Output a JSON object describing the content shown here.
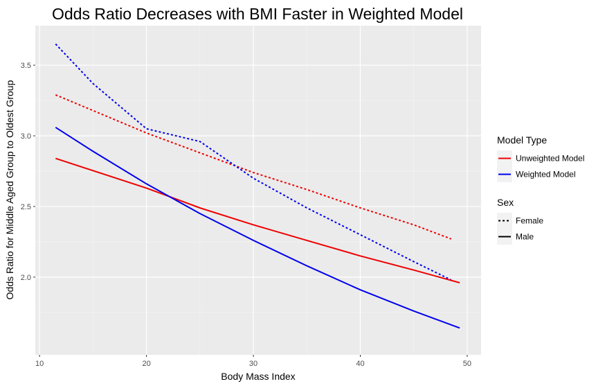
{
  "chart_data": {
    "type": "line",
    "title": "Odds Ratio Decreases with BMI Faster in Weighted Model",
    "xlabel": "Body Mass Index",
    "ylabel": "Odds Ratio for Middle Aged Group to Oldest Group",
    "xlim": [
      9.6,
      51.3
    ],
    "ylim": [
      1.45,
      3.78
    ],
    "x_ticks": [
      10,
      20,
      30,
      40,
      50
    ],
    "y_ticks": [
      2.0,
      2.5,
      3.0,
      3.5
    ],
    "x_tick_labels": [
      "10",
      "20",
      "30",
      "40",
      "50"
    ],
    "y_tick_labels": [
      "2.0",
      "2.5",
      "3.0",
      "3.5"
    ],
    "grid": true,
    "background": "#ebebeb",
    "legend_position": "right",
    "legends": [
      {
        "title": "Model Type",
        "entries": [
          {
            "label": "Unweighted Model",
            "color": "#ee0000",
            "dash": "solid"
          },
          {
            "label": "Weighted Model",
            "color": "#0000ee",
            "dash": "solid"
          }
        ]
      },
      {
        "title": "Sex",
        "entries": [
          {
            "label": "Female",
            "color": "#000000",
            "dash": "dotted"
          },
          {
            "label": "Male",
            "color": "#000000",
            "dash": "solid"
          }
        ]
      }
    ],
    "series": [
      {
        "model": "Unweighted Model",
        "sex": "Female",
        "color": "#ee0000",
        "dash": "dotted",
        "x": [
          11.5,
          20,
          25,
          30,
          35,
          40,
          45,
          48.5
        ],
        "y": [
          3.29,
          3.02,
          2.88,
          2.74,
          2.62,
          2.49,
          2.37,
          2.27
        ]
      },
      {
        "model": "Weighted Model",
        "sex": "Female",
        "color": "#0000ee",
        "dash": "dotted",
        "x": [
          11.5,
          15,
          20,
          25,
          30,
          35,
          40,
          45,
          48.5
        ],
        "y": [
          3.65,
          3.37,
          3.05,
          2.96,
          2.7,
          2.49,
          2.3,
          2.11,
          1.98
        ]
      },
      {
        "model": "Unweighted Model",
        "sex": "Male",
        "color": "#ee0000",
        "dash": "solid",
        "x": [
          11.5,
          20,
          25,
          30,
          35,
          40,
          45,
          49.3
        ],
        "y": [
          2.84,
          2.63,
          2.49,
          2.37,
          2.26,
          2.15,
          2.05,
          1.96
        ]
      },
      {
        "model": "Weighted Model",
        "sex": "Male",
        "color": "#0000ee",
        "dash": "solid",
        "x": [
          11.5,
          15,
          20,
          25,
          30,
          35,
          40,
          45,
          49.3
        ],
        "y": [
          3.06,
          2.89,
          2.66,
          2.45,
          2.26,
          2.08,
          1.91,
          1.76,
          1.64
        ]
      }
    ]
  }
}
